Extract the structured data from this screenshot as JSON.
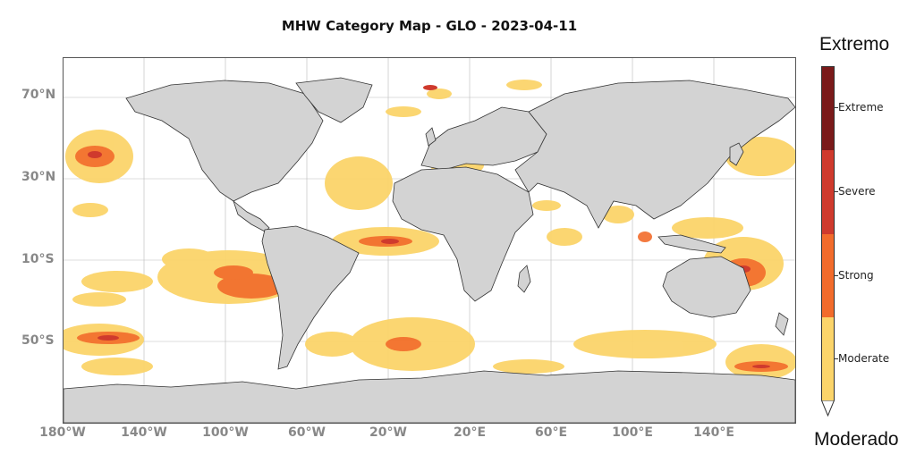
{
  "title": "MHW Category Map - GLO - 2023-04-11",
  "lat_labels": [
    "70°N",
    "30°N",
    "10°S",
    "50°S"
  ],
  "lon_labels": [
    "180°W",
    "140°W",
    "100°W",
    "60°W",
    "20°W",
    "20°E",
    "60°E",
    "100°E",
    "140°E"
  ],
  "colorbar": {
    "top_annotation": "Extremo",
    "bottom_annotation": "Moderado",
    "categories": [
      {
        "label": "Extreme",
        "color": "#7a1a1a"
      },
      {
        "label": "Severe",
        "color": "#cf3a2d"
      },
      {
        "label": "Strong",
        "color": "#f26b2b"
      },
      {
        "label": "Moderate",
        "color": "#fbd46a"
      }
    ]
  },
  "colors": {
    "land": "#d3d3d3",
    "coast": "#333333",
    "ocean": "#ffffff"
  }
}
